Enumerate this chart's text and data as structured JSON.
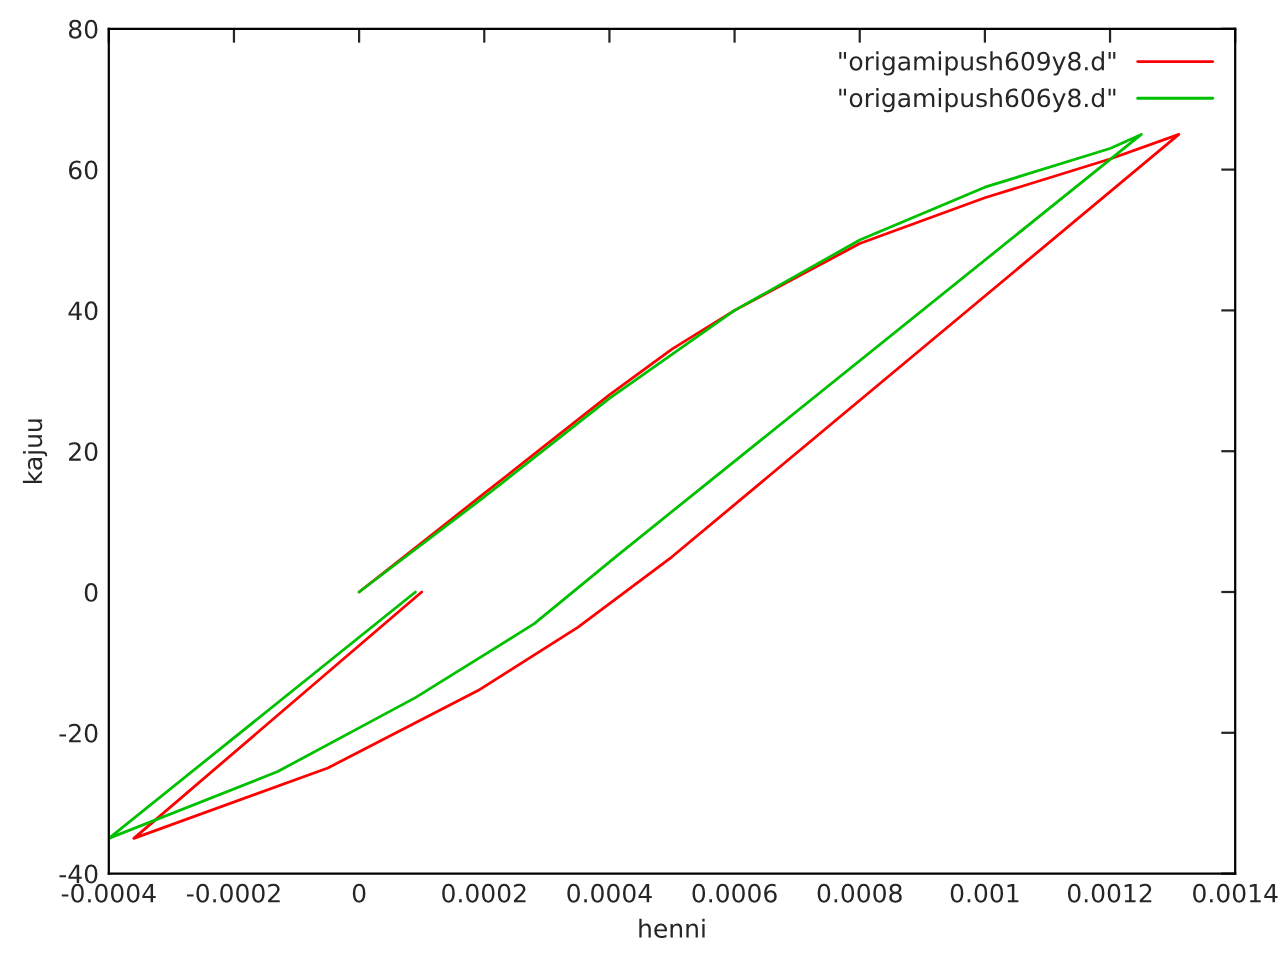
{
  "chart_data": {
    "type": "line",
    "xlabel": "henni",
    "ylabel": "kajuu",
    "xlim": [
      -0.0004,
      0.0014
    ],
    "ylim": [
      -40,
      80
    ],
    "xticks": [
      {
        "value": -0.0004,
        "label": "-0.0004"
      },
      {
        "value": -0.0002,
        "label": "-0.0002"
      },
      0,
      {
        "value": 0.0002,
        "label": "0.0002"
      },
      {
        "value": 0.0004,
        "label": "0.0004"
      },
      {
        "value": 0.0006,
        "label": "0.0006"
      },
      {
        "value": 0.0008,
        "label": "0.0008"
      },
      {
        "value": 0.001,
        "label": "0.001"
      },
      {
        "value": 0.0012,
        "label": "0.0012"
      },
      {
        "value": 0.0014,
        "label": "0.0014"
      }
    ],
    "yticks": [
      -40,
      -20,
      0,
      20,
      40,
      60,
      80
    ],
    "grid": false,
    "legend": "top right",
    "marker": "none",
    "line_style": "solid",
    "series": [
      {
        "name": "\"origamipush609y8.d\"",
        "color": "#ff0000",
        "x": [
          0,
          0.0001,
          0.0002,
          0.0003,
          0.0004,
          0.0005,
          0.0006,
          0.0008,
          0.001,
          0.0012,
          0.00131,
          0.0005,
          0.00035,
          0.00019,
          -5e-05,
          -0.00036,
          0.0001
        ],
        "values": [
          0,
          7,
          14,
          21,
          28,
          34.5,
          40,
          49.5,
          56,
          61.5,
          65,
          5,
          -5,
          -14,
          -25,
          -35,
          0
        ]
      },
      {
        "name": "\"origamipush606y8.d\"",
        "color": "#00c000",
        "x": [
          0,
          0.0002,
          0.0004,
          0.0006,
          0.0008,
          0.001,
          0.0012,
          0.00125,
          0.00041,
          0.00028,
          9e-05,
          -0.00013,
          -0.0004,
          9e-05
        ],
        "values": [
          0,
          13.5,
          27.5,
          40,
          50,
          57.5,
          63,
          65,
          5,
          -4.5,
          -15,
          -25.5,
          -35,
          0
        ]
      }
    ]
  }
}
